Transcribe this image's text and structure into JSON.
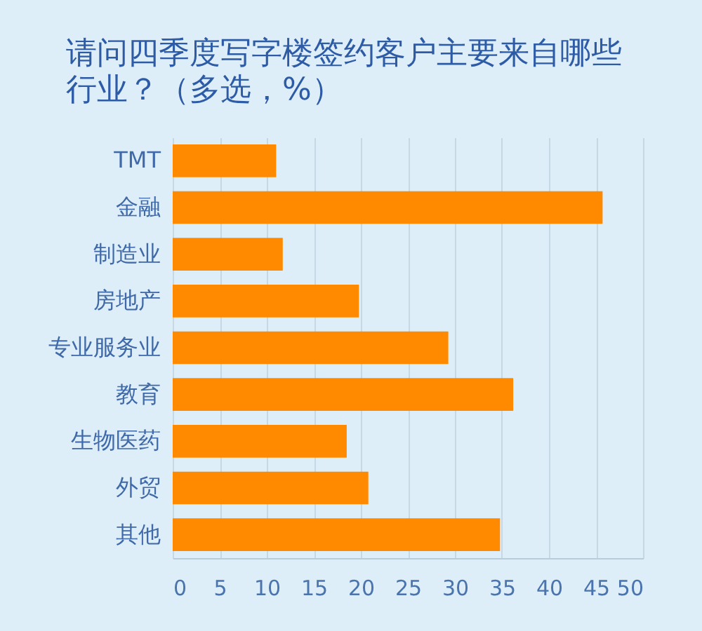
{
  "chart_data": {
    "type": "bar",
    "orientation": "horizontal",
    "title": "请问四季度写字楼签约客户主要来自哪些行业？（多选，%）",
    "categories": [
      "TMT",
      "金融",
      "制造业",
      "房地产",
      "专业服务业",
      "教育",
      "生物医药",
      "外贸",
      "其他"
    ],
    "values": [
      11.0,
      45.7,
      11.7,
      19.8,
      29.3,
      36.2,
      18.5,
      20.8,
      34.8
    ],
    "color": "#ff8a00",
    "xlim": [
      0,
      50
    ],
    "xticks": [
      0,
      5,
      10,
      15,
      20,
      25,
      30,
      35,
      40,
      45,
      50
    ],
    "grid": "x"
  }
}
